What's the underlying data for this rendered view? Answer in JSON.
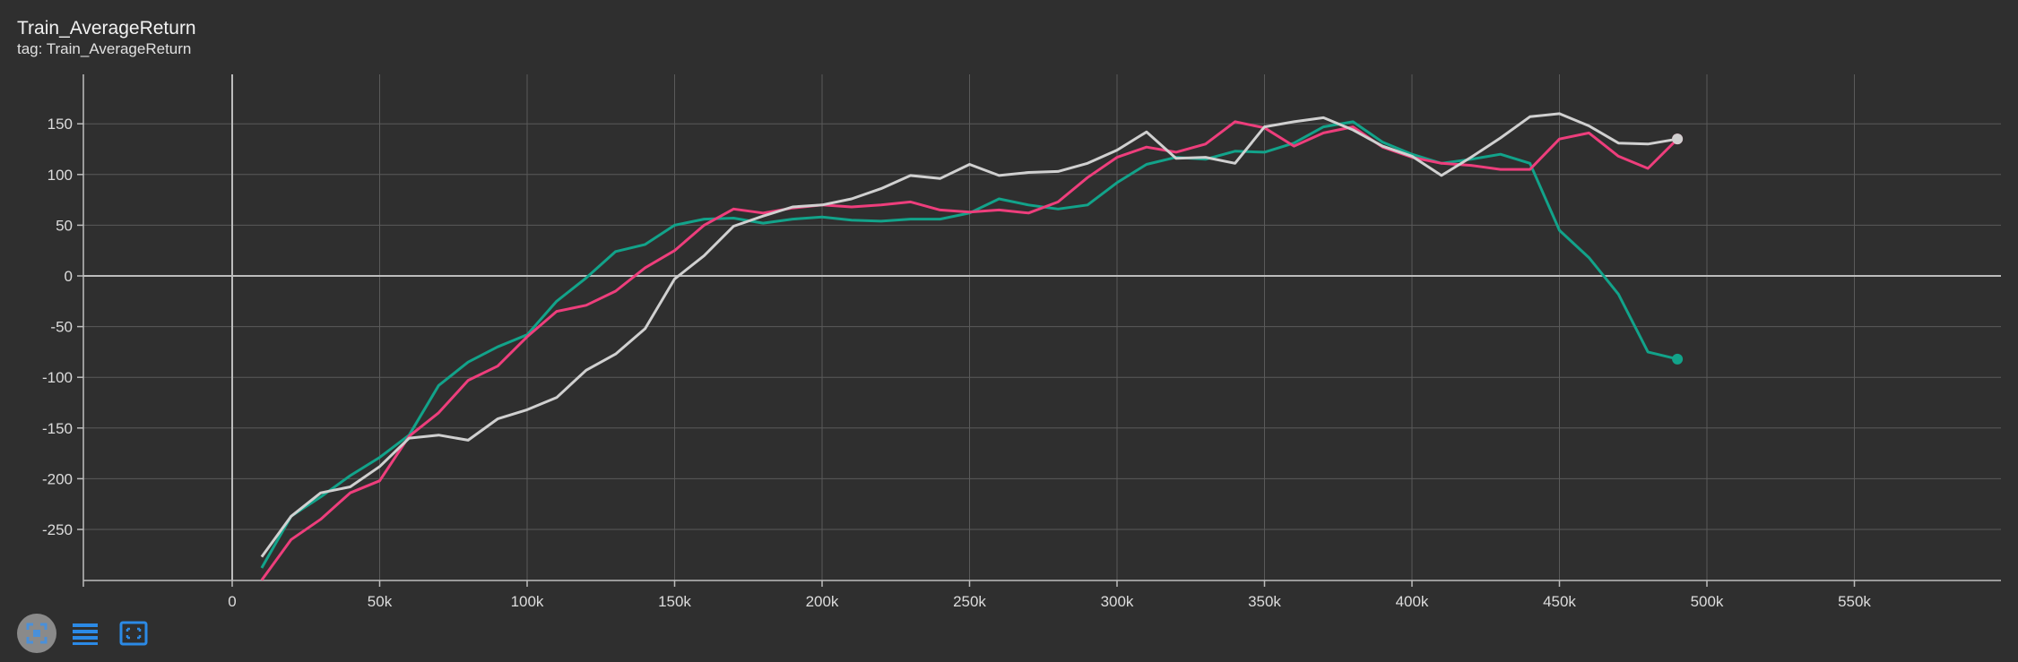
{
  "card": {
    "title": "Train_AverageReturn",
    "tag": "tag: Train_AverageReturn"
  },
  "colors": {
    "background": "#2f2f2f",
    "grid": "#5a5a5a",
    "axis": "#bdbdbd",
    "teal": "#12a38a",
    "pink": "#ee3e7c",
    "gray": "#d0d0d0"
  },
  "toolbar": {
    "icons": [
      "fit-domain-icon",
      "toggle-log-icon",
      "toggle-zoom-icon"
    ]
  },
  "chart_data": {
    "type": "line",
    "title": "Train_AverageReturn",
    "xlabel": "",
    "ylabel": "",
    "xlim": [
      -50000,
      600000
    ],
    "ylim": [
      -300,
      200
    ],
    "x_ticks": [
      0,
      50000,
      100000,
      150000,
      200000,
      250000,
      300000,
      350000,
      400000,
      450000,
      500000,
      550000
    ],
    "x_tick_labels": [
      "0",
      "50k",
      "100k",
      "150k",
      "200k",
      "250k",
      "300k",
      "350k",
      "400k",
      "450k",
      "500k",
      "550k"
    ],
    "y_ticks": [
      -250,
      -200,
      -150,
      -100,
      -50,
      0,
      50,
      100,
      150
    ],
    "y_tick_labels": [
      "-250",
      "-200",
      "-150",
      "-100",
      "-50",
      "0",
      "50",
      "100",
      "150"
    ],
    "x": [
      10000,
      20000,
      30000,
      40000,
      50000,
      60000,
      70000,
      80000,
      90000,
      100000,
      110000,
      120000,
      130000,
      140000,
      150000,
      160000,
      170000,
      180000,
      190000,
      200000,
      210000,
      220000,
      230000,
      240000,
      250000,
      260000,
      270000,
      280000,
      290000,
      300000,
      310000,
      320000,
      330000,
      340000,
      350000,
      360000,
      370000,
      380000,
      390000,
      400000,
      410000,
      420000,
      430000,
      440000,
      450000,
      460000,
      470000,
      480000,
      490000
    ],
    "series": [
      {
        "name": "teal",
        "color": "#12a38a",
        "values": [
          -288,
          -237,
          -218,
          -197,
          -179,
          -157,
          -108,
          -85,
          -70,
          -58,
          -25,
          -2,
          24,
          31,
          50,
          56,
          57,
          52,
          56,
          58,
          55,
          54,
          56,
          56,
          62,
          76,
          70,
          66,
          70,
          92,
          110,
          117,
          115,
          123,
          122,
          131,
          147,
          152,
          132,
          120,
          111,
          115,
          120,
          111,
          45,
          18,
          -18,
          -75,
          -82
        ]
      },
      {
        "name": "pink",
        "color": "#ee3e7c",
        "values": [
          -300,
          -260,
          -240,
          -214,
          -202,
          -158,
          -135,
          -103,
          -89,
          -60,
          -35,
          -29,
          -15,
          8,
          25,
          50,
          66,
          62,
          67,
          70,
          68,
          70,
          73,
          65,
          63,
          65,
          62,
          73,
          97,
          117,
          127,
          122,
          130,
          152,
          146,
          128,
          141,
          147,
          127,
          117,
          111,
          109,
          105,
          105,
          135,
          141,
          118,
          106,
          135
        ]
      },
      {
        "name": "gray",
        "color": "#d0d0d0",
        "values": [
          -277,
          -237,
          -214,
          -208,
          -188,
          -160,
          -157,
          -162,
          -141,
          -132,
          -120,
          -93,
          -77,
          -52,
          -3,
          20,
          49,
          59,
          68,
          70,
          76,
          86,
          99,
          96,
          110,
          99,
          102,
          103,
          111,
          124,
          142,
          116,
          117,
          111,
          147,
          152,
          156,
          144,
          128,
          118,
          99,
          117,
          136,
          157,
          160,
          148,
          131,
          130,
          135
        ]
      }
    ]
  }
}
